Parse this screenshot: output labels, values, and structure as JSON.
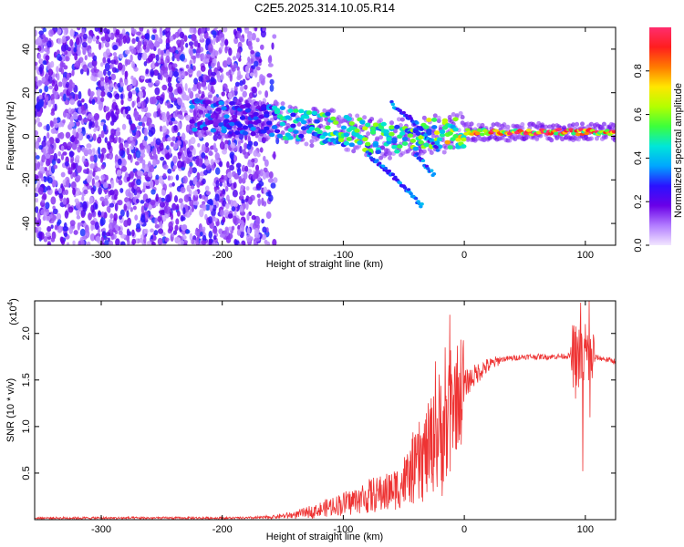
{
  "title": "C2E5.2025.314.10.05.R14",
  "chart_data": [
    {
      "type": "heatmap",
      "title": "C2E5.2025.314.10.05.R14",
      "xlabel": "Height of straight line (km)",
      "ylabel": "Frequency (Hz)",
      "xlim": [
        -355,
        125
      ],
      "ylim": [
        -50,
        50
      ],
      "xticks": [
        -300,
        -200,
        -100,
        0,
        100
      ],
      "yticks": [
        -40,
        -20,
        0,
        20,
        40
      ],
      "colorbar": {
        "label": "Normalized spectral amplitude",
        "range": [
          0,
          1
        ],
        "ticks": [
          0.0,
          0.2,
          0.4,
          0.6,
          0.8
        ],
        "tick_labels": [
          "0.0",
          "0.2",
          "0.4",
          "0.6",
          "0.8"
        ],
        "colormap": [
          "#f2e6ff",
          "#b27cff",
          "#6a00e8",
          "#2a12ff",
          "#00a6ff",
          "#00e6d8",
          "#3cff3c",
          "#b4ff00",
          "#ffe600",
          "#ff7a00",
          "#ff1e1e",
          "#ff2d6e"
        ]
      },
      "ridge": [
        {
          "x": -225,
          "y": 10,
          "amp": 0.35
        },
        {
          "x": -200,
          "y": 9,
          "amp": 0.3
        },
        {
          "x": -175,
          "y": 8,
          "amp": 0.3
        },
        {
          "x": -150,
          "y": 6,
          "amp": 0.45
        },
        {
          "x": -125,
          "y": 4,
          "amp": 0.5
        },
        {
          "x": -100,
          "y": 3,
          "amp": 0.55
        },
        {
          "x": -75,
          "y": -1,
          "amp": 0.55
        },
        {
          "x": -50,
          "y": -1,
          "amp": 0.5
        },
        {
          "x": -25,
          "y": 1,
          "amp": 0.6
        },
        {
          "x": 0,
          "y": 2,
          "amp": 0.8
        },
        {
          "x": 25,
          "y": 2,
          "amp": 0.9
        },
        {
          "x": 50,
          "y": 2,
          "amp": 0.95
        },
        {
          "x": 75,
          "y": 2,
          "amp": 0.95
        },
        {
          "x": 100,
          "y": 2,
          "amp": 0.95
        },
        {
          "x": 125,
          "y": 2,
          "amp": 0.9
        }
      ],
      "branches": [
        [
          {
            "x": -60,
            "y": 15
          },
          {
            "x": -40,
            "y": 6
          },
          {
            "x": -22,
            "y": -6
          }
        ],
        [
          {
            "x": -80,
            "y": -8
          },
          {
            "x": -55,
            "y": -20
          },
          {
            "x": -35,
            "y": -32
          }
        ],
        [
          {
            "x": -40,
            "y": -8
          },
          {
            "x": -25,
            "y": -18
          }
        ]
      ],
      "noise_region": {
        "x_from": -355,
        "x_to": -170,
        "fade_to": -150
      }
    },
    {
      "type": "line",
      "xlabel": "Height of straight line (km)",
      "ylabel": "SNR (10 * v/v)",
      "y_multiplier": "(x10",
      "y_multiplier_exp": "4",
      "y_multiplier_close": ")",
      "xlim": [
        -355,
        125
      ],
      "ylim": [
        0,
        2.35
      ],
      "xticks": [
        -300,
        -200,
        -100,
        0,
        100
      ],
      "yticks": [
        0.5,
        1.0,
        1.5,
        2.0
      ],
      "ytick_labels": [
        "0.5",
        "1.0",
        "1.5",
        "2.0"
      ],
      "color": "#ee3333",
      "envelope": [
        {
          "x": -355,
          "y": 0.02
        },
        {
          "x": -180,
          "y": 0.02
        },
        {
          "x": -160,
          "y": 0.03
        },
        {
          "x": -140,
          "y": 0.06
        },
        {
          "x": -120,
          "y": 0.12
        },
        {
          "x": -100,
          "y": 0.2
        },
        {
          "x": -80,
          "y": 0.28
        },
        {
          "x": -60,
          "y": 0.36
        },
        {
          "x": -50,
          "y": 0.45
        },
        {
          "x": -40,
          "y": 0.65
        },
        {
          "x": -30,
          "y": 0.85
        },
        {
          "x": -20,
          "y": 1.05
        },
        {
          "x": -10,
          "y": 1.25
        },
        {
          "x": 0,
          "y": 1.45
        },
        {
          "x": 15,
          "y": 1.62
        },
        {
          "x": 30,
          "y": 1.72
        },
        {
          "x": 50,
          "y": 1.75
        },
        {
          "x": 70,
          "y": 1.75
        },
        {
          "x": 90,
          "y": 1.76
        },
        {
          "x": 110,
          "y": 1.74
        },
        {
          "x": 125,
          "y": 1.7
        }
      ],
      "spikes": [
        {
          "x": -12,
          "y": 2.2
        },
        {
          "x": -16,
          "y": 1.85
        },
        {
          "x": -24,
          "y": 1.7
        },
        {
          "x": -8,
          "y": 1.6
        },
        {
          "x": 96,
          "y": 2.33
        },
        {
          "x": 100,
          "y": 2.1
        },
        {
          "x": 103,
          "y": 2.35
        },
        {
          "x": 98,
          "y": 0.52
        },
        {
          "x": 104,
          "y": 1.1
        },
        {
          "x": 92,
          "y": 1.3
        }
      ]
    }
  ]
}
